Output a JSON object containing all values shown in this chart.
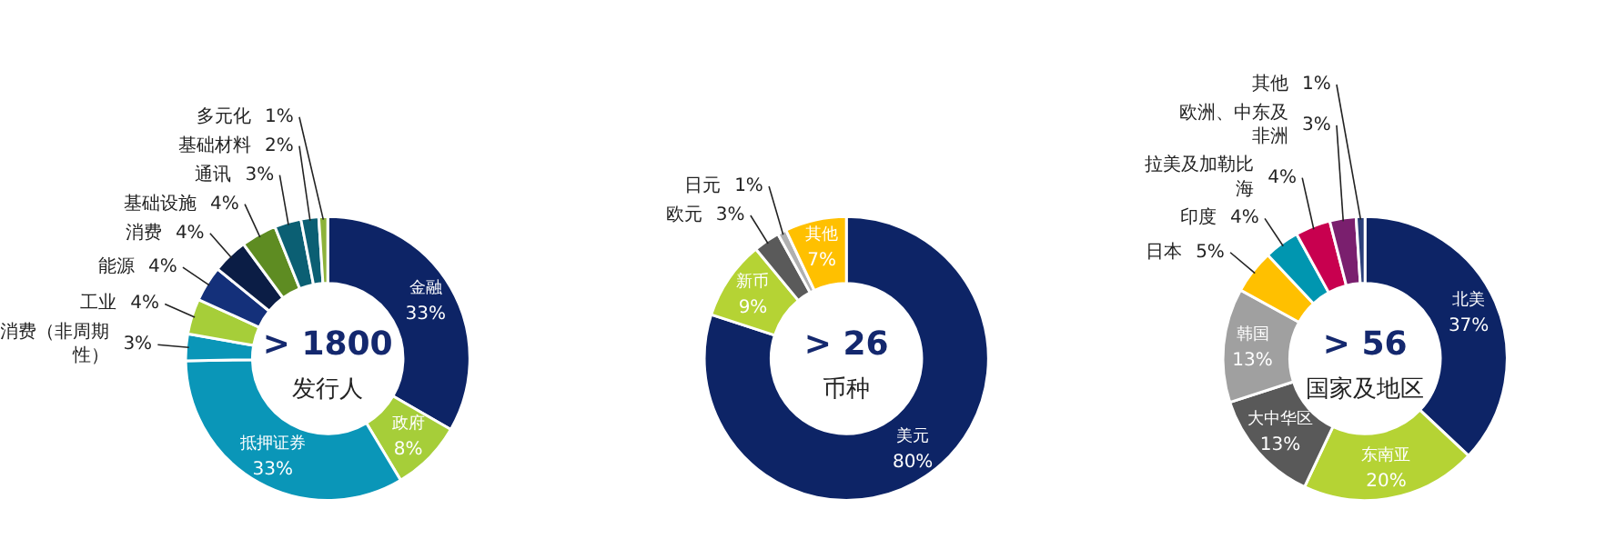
{
  "chart_data": [
    {
      "type": "donut",
      "title": "> 1800",
      "subtitle": "发行人",
      "categories": [
        "金融",
        "政府",
        "抵押证券",
        "消费（非周期性）",
        "工业",
        "能源",
        "消费",
        "基础设施",
        "通讯",
        "基础材料",
        "多元化"
      ],
      "values": [
        33,
        8,
        33,
        3,
        4,
        4,
        4,
        4,
        3,
        2,
        1
      ],
      "value_labels": [
        "33%",
        "8%",
        "33%",
        "3%",
        "4%",
        "4%",
        "4%",
        "4%",
        "3%",
        "2%",
        "1%"
      ],
      "colors": [
        "#0d2466",
        "#a6ce39",
        "#0a96b8",
        "#0a96b8",
        "#a6ce39",
        "#14307a",
        "#0b1d45",
        "#5e8c22",
        "#0b5f73",
        "#0b5f73",
        "#8db33a"
      ]
    },
    {
      "type": "donut",
      "title": "> 26",
      "subtitle": "币种",
      "categories": [
        "美元",
        "新币",
        "欧元",
        "日元",
        "其他"
      ],
      "values": [
        80,
        9,
        3,
        1,
        7
      ],
      "value_labels": [
        "80%",
        "9%",
        "3%",
        "1%",
        "7%"
      ],
      "colors": [
        "#0d2466",
        "#b5d334",
        "#5a5a5a",
        "#b0b0b0",
        "#ffc000"
      ]
    },
    {
      "type": "donut",
      "title": "> 56",
      "subtitle": "国家及地区",
      "categories": [
        "北美",
        "东南亚",
        "大中华区",
        "韩国",
        "日本",
        "印度",
        "拉美及加勒比海",
        "欧洲、中东及非洲",
        "其他"
      ],
      "values": [
        37,
        20,
        13,
        13,
        5,
        4,
        4,
        3,
        1
      ],
      "value_labels": [
        "37%",
        "20%",
        "13%",
        "13%",
        "5%",
        "4%",
        "4%",
        "3%",
        "1%"
      ],
      "colors": [
        "#0d2466",
        "#b5d334",
        "#595959",
        "#a0a0a0",
        "#ffc000",
        "#0096b0",
        "#c8004f",
        "#7a1f6e",
        "#2b3f7a"
      ]
    }
  ]
}
